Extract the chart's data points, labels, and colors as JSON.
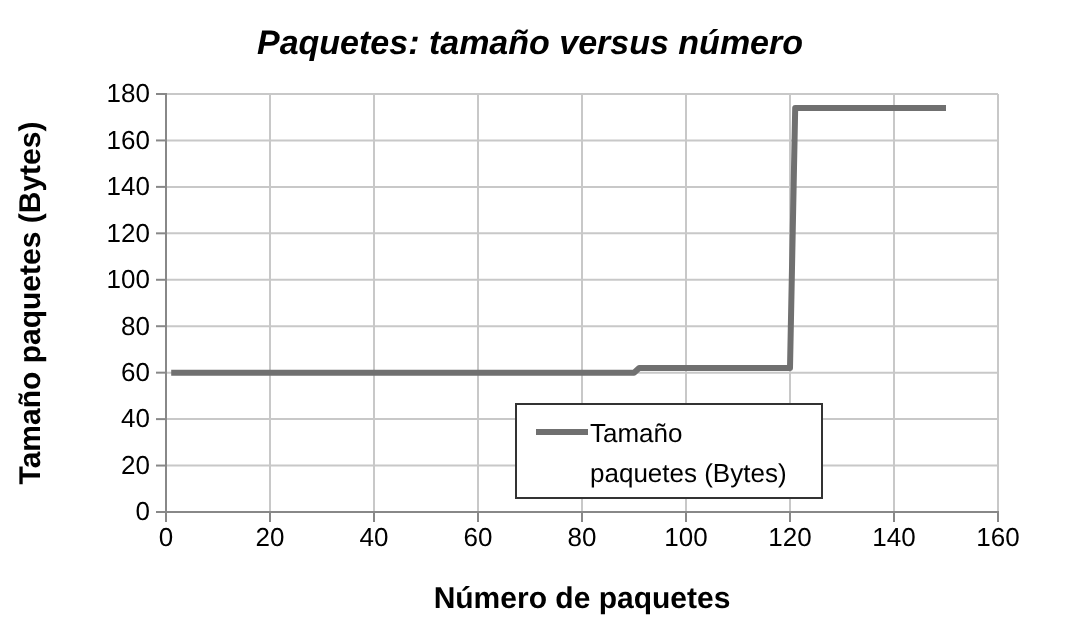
{
  "chart_data": {
    "type": "line",
    "title": "Paquetes: tamaño versus número",
    "xlabel": "Número de paquetes",
    "ylabel": "Tamaño paquetes (Bytes)",
    "x": [
      1,
      90,
      91,
      120,
      121,
      150
    ],
    "series": [
      {
        "name": "Tamaño paquetes (Bytes)",
        "color": "#707070",
        "values": [
          60,
          60,
          62,
          62,
          174,
          174
        ]
      }
    ],
    "xlim": [
      0,
      160
    ],
    "xticks": [
      0,
      20,
      40,
      60,
      80,
      100,
      120,
      140,
      160
    ],
    "ylim": [
      0,
      180
    ],
    "yticks": [
      0,
      20,
      40,
      60,
      80,
      100,
      120,
      140,
      160,
      180
    ],
    "grid": true,
    "legend": "bottom",
    "marker": "none",
    "line_style": "solid"
  }
}
